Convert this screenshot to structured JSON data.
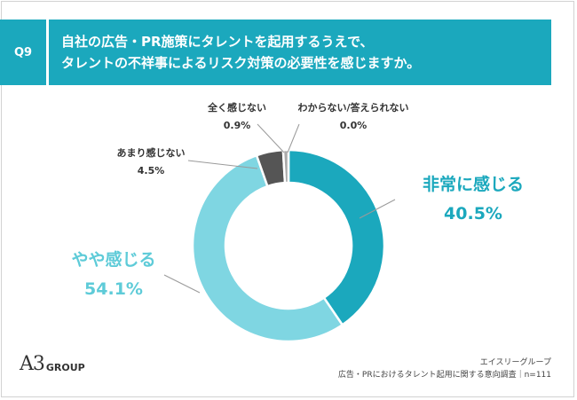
{
  "question": {
    "number": "Q9",
    "line1": "自社の広告・PR施策にタレントを起用するうえで、",
    "line2": "タレントの不祥事によるリスク対策の必要性を感じますか。"
  },
  "chart_data": {
    "type": "pie",
    "categories": [
      "非常に感じる",
      "やや感じる",
      "あまり感じない",
      "全く感じない",
      "わからない/答えられない"
    ],
    "values": [
      40.5,
      54.1,
      4.5,
      0.9,
      0.0
    ],
    "value_labels": [
      "40.5%",
      "54.1%",
      "4.5%",
      "0.9%",
      "0.0%"
    ],
    "colors": [
      "#1ba8bd",
      "#7fd6e2",
      "#555555",
      "#aaaaaa",
      "#cccccc"
    ],
    "donut": true
  },
  "logo": {
    "mark": "A3",
    "text": "GROUP"
  },
  "source": {
    "company": "エイスリーグループ",
    "survey": "広告・PRにおけるタレント起用に関する意向調査｜n=111"
  }
}
